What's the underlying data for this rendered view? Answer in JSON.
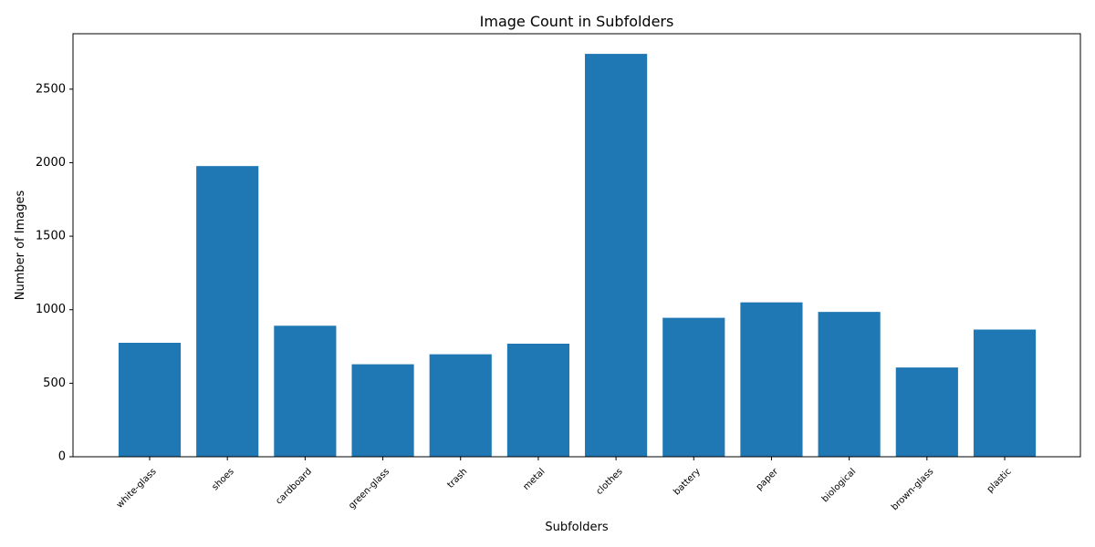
{
  "chart_data": {
    "type": "bar",
    "title": "Image Count in Subfolders",
    "xlabel": "Subfolders",
    "ylabel": "Number of Images",
    "categories": [
      "white-glass",
      "shoes",
      "cardboard",
      "green-glass",
      "trash",
      "metal",
      "clothes",
      "battery",
      "paper",
      "biological",
      "brown-glass",
      "plastic"
    ],
    "values": [
      775,
      1977,
      891,
      629,
      697,
      769,
      2740,
      945,
      1050,
      985,
      607,
      865
    ],
    "ylim": [
      0,
      2877
    ],
    "yticks": [
      0,
      500,
      1000,
      1500,
      2000,
      2500
    ],
    "grid": false,
    "bar_color": "#1f77b4"
  }
}
